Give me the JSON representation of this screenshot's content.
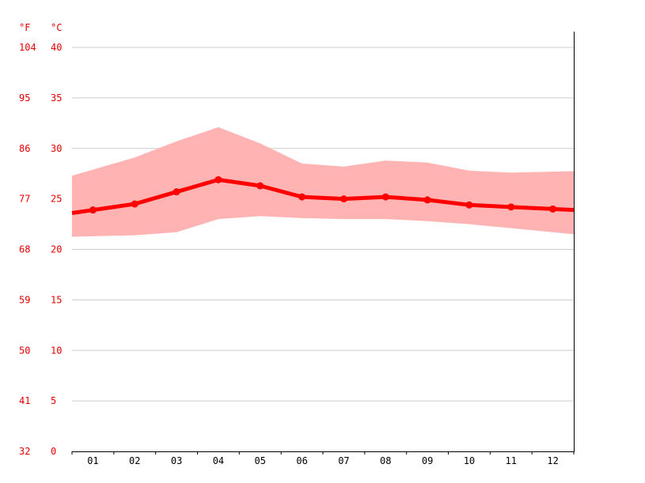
{
  "chart_data": {
    "type": "line",
    "unit_labels": {
      "fahrenheit": "°F",
      "celsius": "°C"
    },
    "categories": [
      "01",
      "02",
      "03",
      "04",
      "05",
      "06",
      "07",
      "08",
      "09",
      "10",
      "11",
      "12"
    ],
    "y_ticks_c": [
      "40",
      "35",
      "30",
      "25",
      "20",
      "15",
      "10",
      "5",
      "0"
    ],
    "y_ticks_f": [
      "104",
      "95",
      "86",
      "77",
      "68",
      "59",
      "50",
      "41",
      "32"
    ],
    "ylim": [
      0,
      40
    ],
    "grid": true,
    "series": [
      {
        "role": "mean",
        "values": [
          23.9,
          24.5,
          25.7,
          26.9,
          26.3,
          25.2,
          25.0,
          25.2,
          24.9,
          24.4,
          24.2,
          24.0
        ]
      },
      {
        "role": "max",
        "values": [
          27.9,
          29.1,
          30.7,
          32.1,
          30.5,
          28.5,
          28.2,
          28.8,
          28.6,
          27.8,
          27.6,
          27.7
        ]
      },
      {
        "role": "min",
        "values": [
          21.3,
          21.4,
          21.7,
          23.0,
          23.3,
          23.1,
          23.0,
          23.0,
          22.8,
          22.5,
          22.1,
          21.7
        ]
      }
    ],
    "colors": {
      "line": "#ff0000",
      "band": "#ffb3b3",
      "labels": "#e60000",
      "grid": "#cccccc",
      "axis": "#000000"
    }
  }
}
